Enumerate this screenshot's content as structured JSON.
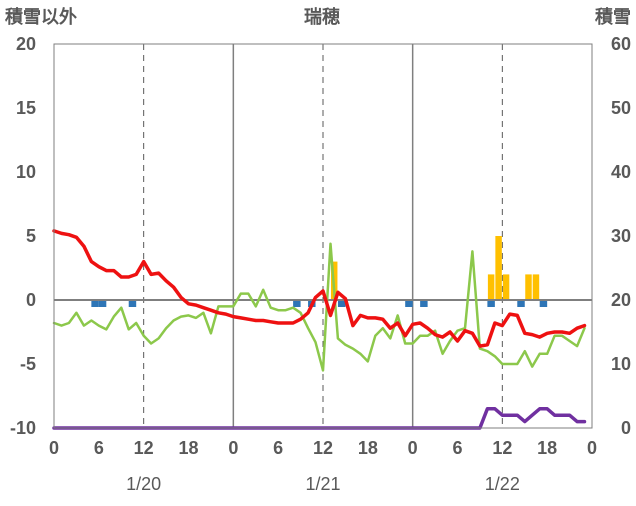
{
  "chart_data": {
    "type": "line",
    "title": "瑞穂",
    "left_axis_title": "積雪以外",
    "right_axis_title": "積雪",
    "left_ylim": [
      -10,
      20
    ],
    "left_ticks": [
      -10,
      -5,
      0,
      5,
      10,
      15,
      20
    ],
    "right_ylim": [
      0,
      60
    ],
    "right_ticks": [
      0,
      10,
      20,
      30,
      40,
      50,
      60
    ],
    "x_range_hours": [
      0,
      72
    ],
    "x_tick_labels": [
      "0",
      "6",
      "12",
      "18",
      "0",
      "6",
      "12",
      "18",
      "0",
      "6",
      "12",
      "18",
      "0"
    ],
    "date_labels": [
      "1/20",
      "1/21",
      "1/22"
    ],
    "grid": "vertical dashed every 12 h, solid at day boundaries",
    "colors": {
      "temperature": "#ee1111",
      "green_series": "#8cc84b",
      "snow_depth": "#7030a0",
      "snowfall_bars": "#ffc000",
      "precip_markers": "#2e75b6",
      "zero_line": "#7f7f7f"
    },
    "series": [
      {
        "key": "red",
        "axis": "left",
        "x": [
          0,
          1,
          2,
          3,
          4,
          5,
          6,
          7,
          8,
          9,
          10,
          11,
          12,
          13,
          14,
          15,
          16,
          17,
          18,
          19,
          20,
          21,
          22,
          23,
          24,
          25,
          26,
          27,
          28,
          29,
          30,
          31,
          32,
          33,
          34,
          35,
          36,
          37,
          38,
          39,
          40,
          41,
          42,
          43,
          44,
          45,
          46,
          47,
          48,
          49,
          50,
          51,
          52,
          53,
          54,
          55,
          56,
          57,
          58,
          59,
          60,
          61,
          62,
          63,
          64,
          65,
          66,
          67,
          68,
          69,
          70,
          71
        ],
        "y": [
          5.4,
          5.2,
          5.1,
          4.9,
          4.2,
          3.0,
          2.6,
          2.3,
          2.3,
          1.8,
          1.8,
          2.0,
          3.0,
          2.0,
          2.1,
          1.5,
          1.0,
          0.2,
          -0.3,
          -0.4,
          -0.6,
          -0.8,
          -1.0,
          -1.1,
          -1.3,
          -1.4,
          -1.5,
          -1.6,
          -1.6,
          -1.7,
          -1.8,
          -1.8,
          -1.8,
          -1.5,
          -1.0,
          0.2,
          0.7,
          -1.2,
          0.6,
          0.1,
          -2.0,
          -1.2,
          -1.4,
          -1.4,
          -1.5,
          -2.2,
          -1.8,
          -2.8,
          -1.9,
          -1.8,
          -2.2,
          -2.7,
          -2.9,
          -2.5,
          -3.2,
          -2.4,
          -2.6,
          -3.6,
          -3.5,
          -1.8,
          -2.0,
          -1.1,
          -1.2,
          -2.6,
          -2.7,
          -2.9,
          -2.6,
          -2.5,
          -2.5,
          -2.6,
          -2.2,
          -2.0
        ]
      },
      {
        "key": "green",
        "axis": "left",
        "x": [
          0,
          1,
          2,
          3,
          4,
          5,
          6,
          7,
          8,
          9,
          10,
          11,
          12,
          13,
          14,
          15,
          16,
          17,
          18,
          19,
          20,
          21,
          22,
          23,
          24,
          25,
          26,
          27,
          28,
          29,
          30,
          31,
          32,
          33,
          34,
          35,
          36,
          37,
          38,
          39,
          40,
          41,
          42,
          43,
          44,
          45,
          46,
          47,
          48,
          49,
          50,
          51,
          52,
          53,
          54,
          55,
          56,
          57,
          58,
          59,
          60,
          61,
          62,
          63,
          64,
          65,
          66,
          67,
          68,
          69,
          70,
          71
        ],
        "y": [
          -1.8,
          -2.0,
          -1.8,
          -1.0,
          -2.0,
          -1.6,
          -2.0,
          -2.3,
          -1.3,
          -0.6,
          -2.3,
          -1.8,
          -2.8,
          -3.4,
          -3.0,
          -2.2,
          -1.6,
          -1.3,
          -1.2,
          -1.4,
          -1.0,
          -2.6,
          -0.5,
          -0.5,
          -0.5,
          0.5,
          0.5,
          -0.5,
          0.8,
          -0.6,
          -0.8,
          -0.8,
          -0.6,
          -1.0,
          -2.2,
          -3.3,
          -5.5,
          4.4,
          -3.0,
          -3.5,
          -3.8,
          -4.2,
          -4.8,
          -2.8,
          -2.2,
          -3.0,
          -1.2,
          -3.4,
          -3.4,
          -2.8,
          -2.8,
          -2.4,
          -4.2,
          -3.2,
          -2.4,
          -2.2,
          3.8,
          -3.8,
          -4.0,
          -4.4,
          -5.0,
          -5.0,
          -5.0,
          -4.0,
          -5.2,
          -4.2,
          -4.2,
          -2.8,
          -2.8,
          -3.2,
          -3.6,
          -2.2
        ]
      },
      {
        "key": "purple",
        "axis": "right",
        "x": [
          0,
          57,
          58,
          59,
          60,
          61,
          62,
          63,
          64,
          65,
          66,
          67,
          68,
          69,
          70,
          71
        ],
        "y": [
          0,
          0,
          3,
          3,
          2,
          2,
          2,
          1,
          2,
          3,
          3,
          2,
          2,
          2,
          1,
          1
        ]
      }
    ],
    "bars": {
      "key": "snowfall",
      "axis": "left",
      "x": [
        37,
        58,
        59,
        60,
        63,
        64
      ],
      "y": [
        3,
        2,
        5,
        2,
        2,
        2
      ]
    },
    "markers": {
      "key": "precip",
      "x": [
        5,
        6,
        10,
        32,
        34,
        38,
        47,
        49,
        58,
        62,
        65
      ]
    }
  }
}
